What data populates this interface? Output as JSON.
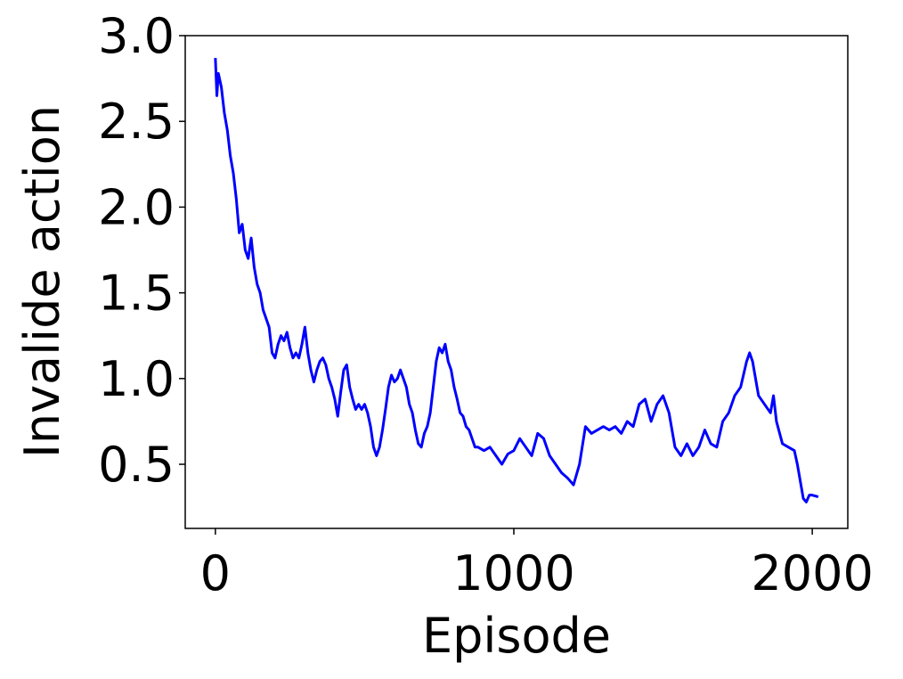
{
  "chart_data": {
    "type": "line",
    "x_label": "Episode",
    "y_label": "Invalide action",
    "x": [
      0,
      5,
      10,
      20,
      30,
      40,
      50,
      60,
      70,
      80,
      90,
      100,
      110,
      120,
      130,
      140,
      150,
      160,
      170,
      180,
      190,
      200,
      210,
      220,
      230,
      240,
      250,
      260,
      270,
      280,
      290,
      300,
      310,
      320,
      330,
      340,
      350,
      360,
      370,
      380,
      390,
      400,
      410,
      420,
      430,
      440,
      450,
      460,
      470,
      480,
      490,
      500,
      510,
      520,
      530,
      540,
      550,
      560,
      570,
      580,
      590,
      600,
      610,
      620,
      630,
      640,
      650,
      660,
      670,
      680,
      690,
      700,
      710,
      720,
      730,
      740,
      750,
      760,
      770,
      780,
      790,
      800,
      810,
      820,
      830,
      840,
      850,
      860,
      870,
      880,
      900,
      920,
      940,
      960,
      980,
      1000,
      1020,
      1040,
      1060,
      1080,
      1100,
      1120,
      1140,
      1160,
      1180,
      1200,
      1220,
      1240,
      1260,
      1280,
      1300,
      1320,
      1340,
      1360,
      1380,
      1400,
      1420,
      1440,
      1460,
      1480,
      1500,
      1520,
      1540,
      1560,
      1580,
      1600,
      1620,
      1640,
      1660,
      1680,
      1700,
      1720,
      1740,
      1760,
      1780,
      1790,
      1800,
      1820,
      1840,
      1860,
      1870,
      1880,
      1900,
      1920,
      1940,
      1950,
      1960,
      1970,
      1980,
      1990,
      2000,
      2020
    ],
    "series": [
      {
        "name": "Invalide action",
        "color": "#0000ff",
        "values": [
          2.87,
          2.65,
          2.78,
          2.7,
          2.55,
          2.45,
          2.3,
          2.2,
          2.05,
          1.85,
          1.9,
          1.75,
          1.7,
          1.82,
          1.65,
          1.55,
          1.5,
          1.4,
          1.35,
          1.3,
          1.15,
          1.12,
          1.2,
          1.25,
          1.22,
          1.27,
          1.18,
          1.12,
          1.15,
          1.12,
          1.2,
          1.3,
          1.15,
          1.05,
          0.98,
          1.05,
          1.1,
          1.12,
          1.08,
          1.0,
          0.95,
          0.88,
          0.78,
          0.92,
          1.05,
          1.08,
          0.95,
          0.88,
          0.82,
          0.85,
          0.82,
          0.85,
          0.8,
          0.72,
          0.6,
          0.55,
          0.6,
          0.7,
          0.82,
          0.95,
          1.02,
          0.98,
          1.0,
          1.05,
          1.0,
          0.95,
          0.85,
          0.8,
          0.7,
          0.62,
          0.6,
          0.68,
          0.72,
          0.8,
          0.95,
          1.1,
          1.18,
          1.15,
          1.2,
          1.1,
          1.05,
          0.95,
          0.88,
          0.8,
          0.78,
          0.72,
          0.7,
          0.65,
          0.6,
          0.6,
          0.58,
          0.6,
          0.55,
          0.5,
          0.56,
          0.58,
          0.65,
          0.6,
          0.55,
          0.68,
          0.65,
          0.55,
          0.5,
          0.45,
          0.42,
          0.38,
          0.5,
          0.72,
          0.68,
          0.7,
          0.72,
          0.7,
          0.72,
          0.68,
          0.75,
          0.72,
          0.85,
          0.88,
          0.75,
          0.85,
          0.9,
          0.8,
          0.6,
          0.55,
          0.62,
          0.55,
          0.6,
          0.7,
          0.62,
          0.6,
          0.75,
          0.8,
          0.9,
          0.95,
          1.1,
          1.15,
          1.1,
          0.9,
          0.85,
          0.8,
          0.9,
          0.75,
          0.62,
          0.6,
          0.58,
          0.5,
          0.4,
          0.3,
          0.28,
          0.32,
          0.32,
          0.31
        ]
      }
    ],
    "xlim": [
      -101,
      2119
    ],
    "xticks": [
      0,
      1000,
      2000
    ],
    "ylim": [
      0.126,
      3.0
    ],
    "yticks": [
      0.5,
      1.0,
      1.5,
      2.0,
      2.5,
      3.0
    ]
  }
}
